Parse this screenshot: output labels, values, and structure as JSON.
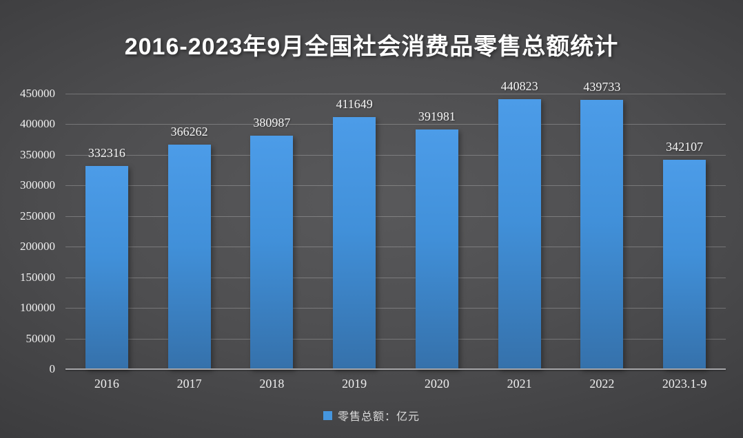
{
  "title": "2016-2023年9月全国社会消费品零售总额统计",
  "legend": {
    "label": "零售总额：亿元",
    "marker_color": "#4596df"
  },
  "colors": {
    "bar_top": "#4c9ce8",
    "bar_bottom": "#3571ab",
    "background_center": "#59595b",
    "background_edge": "#202022",
    "gridline": "rgba(255,255,255,0.24)",
    "axis_line": "#a8a8ab",
    "text": "#f0f0f0"
  },
  "chart_data": {
    "type": "bar",
    "title": "2016-2023年9月全国社会消费品零售总额统计",
    "categories": [
      "2016",
      "2017",
      "2018",
      "2019",
      "2020",
      "2021",
      "2022",
      "2023.1-9"
    ],
    "values": [
      332316,
      366262,
      380987,
      411649,
      391981,
      440823,
      439733,
      342107
    ],
    "xlabel": "",
    "ylabel": "",
    "ylim": [
      0,
      450000
    ],
    "ytick_step": 50000,
    "yticks": [
      450000,
      400000,
      350000,
      300000,
      250000,
      200000,
      150000,
      100000,
      50000,
      0
    ],
    "grid": true,
    "data_labels": true,
    "legend": [
      "零售总额：亿元"
    ],
    "legend_position": "bottom"
  }
}
